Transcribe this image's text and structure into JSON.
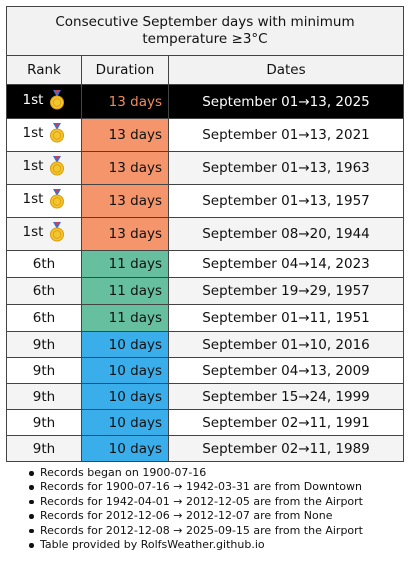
{
  "title": "Consecutive September days with minimum temperature ≥3°C",
  "headers": {
    "rank": "Rank",
    "duration": "Duration",
    "dates": "Dates"
  },
  "colors": {
    "gold": "#f4956c",
    "green": "#66c0a0",
    "blue": "#3aaeea",
    "current_bg": "#000000",
    "current_text": "#f08a5d"
  },
  "rows": [
    {
      "rank": "1st",
      "medal": true,
      "duration": "13 days",
      "dates": "September 01→13, 2025",
      "tier": "gold",
      "current": true
    },
    {
      "rank": "1st",
      "medal": true,
      "duration": "13 days",
      "dates": "September 01→13, 2021",
      "tier": "gold",
      "current": false
    },
    {
      "rank": "1st",
      "medal": true,
      "duration": "13 days",
      "dates": "September 01→13, 1963",
      "tier": "gold",
      "current": false
    },
    {
      "rank": "1st",
      "medal": true,
      "duration": "13 days",
      "dates": "September 01→13, 1957",
      "tier": "gold",
      "current": false
    },
    {
      "rank": "1st",
      "medal": true,
      "duration": "13 days",
      "dates": "September 08→20, 1944",
      "tier": "gold",
      "current": false
    },
    {
      "rank": "6th",
      "medal": false,
      "duration": "11 days",
      "dates": "September 04→14, 2023",
      "tier": "green",
      "current": false
    },
    {
      "rank": "6th",
      "medal": false,
      "duration": "11 days",
      "dates": "September 19→29, 1957",
      "tier": "green",
      "current": false
    },
    {
      "rank": "6th",
      "medal": false,
      "duration": "11 days",
      "dates": "September 01→11, 1951",
      "tier": "green",
      "current": false
    },
    {
      "rank": "9th",
      "medal": false,
      "duration": "10 days",
      "dates": "September 01→10, 2016",
      "tier": "blue",
      "current": false
    },
    {
      "rank": "9th",
      "medal": false,
      "duration": "10 days",
      "dates": "September 04→13, 2009",
      "tier": "blue",
      "current": false
    },
    {
      "rank": "9th",
      "medal": false,
      "duration": "10 days",
      "dates": "September 15→24, 1999",
      "tier": "blue",
      "current": false
    },
    {
      "rank": "9th",
      "medal": false,
      "duration": "10 days",
      "dates": "September 02→11, 1991",
      "tier": "blue",
      "current": false
    },
    {
      "rank": "9th",
      "medal": false,
      "duration": "10 days",
      "dates": "September 02→11, 1989",
      "tier": "blue",
      "current": false
    }
  ],
  "notes": [
    "Records began on 1900-07-16",
    "Records for 1900-07-16 → 1942-03-31 are from Downtown",
    "Records for 1942-04-01 → 2012-12-05 are from the Airport",
    "Records for 2012-12-06 → 2012-12-07 are from None",
    "Records for 2012-12-08 → 2025-09-15 are from the Airport",
    "Table provided by RolfsWeather.github.io"
  ]
}
